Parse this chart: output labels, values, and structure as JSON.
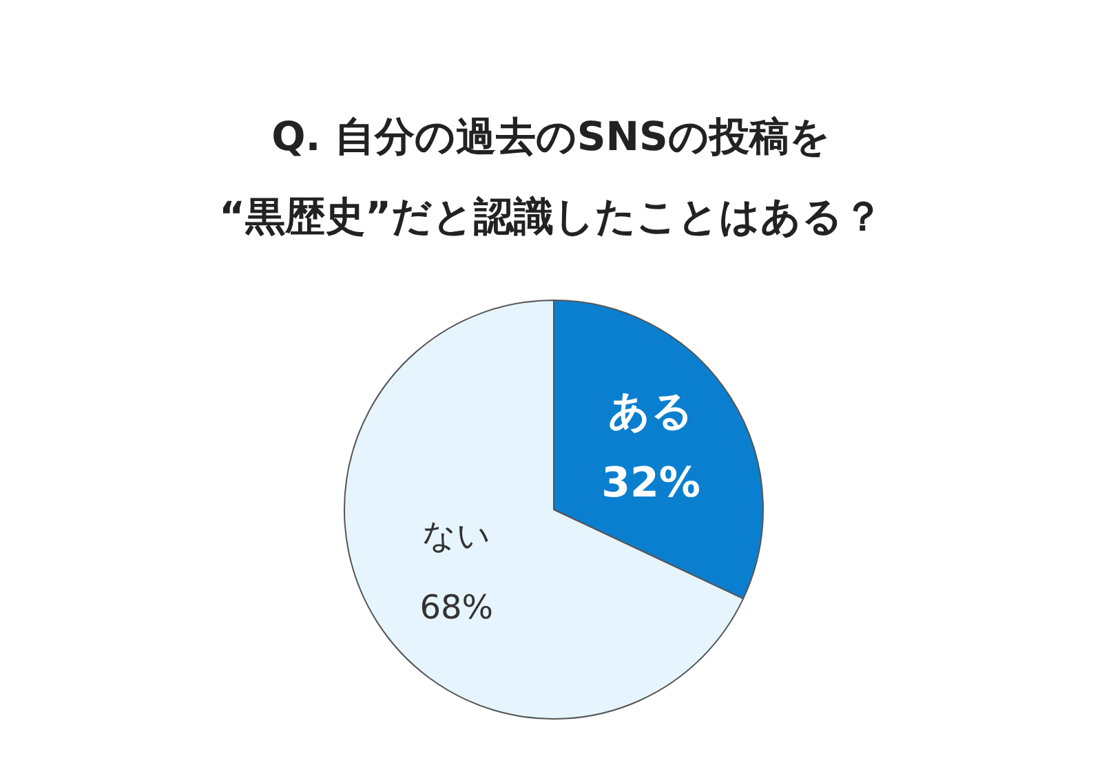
{
  "chart_data": {
    "type": "pie",
    "title": "Q. 自分の過去のSNSの投稿を\n“黒歴史”だと認識したことはある？",
    "categories": [
      "ある",
      "ない"
    ],
    "values": [
      32,
      68
    ],
    "colors": [
      "#0b7fcf",
      "#e6f5fd"
    ],
    "value_labels": [
      "32%",
      "68%"
    ],
    "legend": false
  }
}
